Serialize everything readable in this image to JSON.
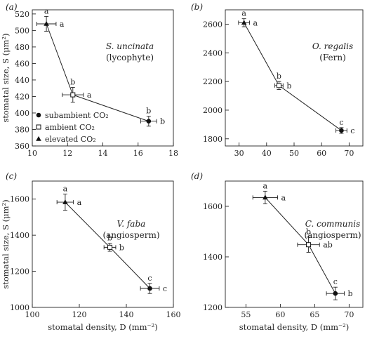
{
  "chart_data": [
    {
      "type": "line",
      "panel_label": "(a)",
      "species": "S. uncinata",
      "group": "(lycophyte)",
      "ylabel": "stomatal size, S (μm²)",
      "xlabel": "",
      "xlim": [
        10,
        18
      ],
      "ylim": [
        360,
        525
      ],
      "xticks": [
        10,
        12,
        14,
        16,
        18
      ],
      "yticks": [
        360,
        380,
        400,
        420,
        440,
        460,
        480,
        500,
        520
      ],
      "legend": {
        "position": "bottom-left",
        "entries": [
          "subambient CO₂",
          "ambient CO₂",
          "elevated CO₂"
        ]
      },
      "points": [
        {
          "condition": "elevated",
          "x": 10.8,
          "y": 508,
          "xerr": 0.55,
          "yerr": 9,
          "xlabel": "a",
          "ylabel": "a"
        },
        {
          "condition": "ambient",
          "x": 12.3,
          "y": 422,
          "xerr": 0.6,
          "yerr": 9,
          "xlabel": "a",
          "ylabel": "b"
        },
        {
          "condition": "subambient",
          "x": 16.6,
          "y": 390,
          "xerr": 0.45,
          "yerr": 6,
          "xlabel": "b",
          "ylabel": "b"
        }
      ]
    },
    {
      "type": "line",
      "panel_label": "(b)",
      "species": "O. regalis",
      "group": "(Fern)",
      "ylabel": "",
      "xlabel": "",
      "xlim": [
        25,
        75
      ],
      "ylim": [
        1750,
        2700
      ],
      "xticks": [
        30,
        40,
        50,
        60,
        70
      ],
      "yticks": [
        1800,
        2000,
        2200,
        2400,
        2600
      ],
      "points": [
        {
          "condition": "elevated",
          "x": 31.8,
          "y": 2610,
          "xerr": 2.0,
          "yerr": 28,
          "xlabel": "a",
          "ylabel": "a"
        },
        {
          "condition": "ambient",
          "x": 44.5,
          "y": 2172,
          "xerr": 1.5,
          "yerr": 28,
          "xlabel": "b",
          "ylabel": "b"
        },
        {
          "condition": "subambient",
          "x": 67.2,
          "y": 1858,
          "xerr": 2.0,
          "yerr": 20,
          "xlabel": "c",
          "ylabel": "c"
        }
      ]
    },
    {
      "type": "line",
      "panel_label": "(c)",
      "species": "V. faba",
      "group": "(angiosperm)",
      "ylabel": "stomatal size, S (μm²)",
      "xlabel": "stomatal density, D (mm⁻²)",
      "xlim": [
        100,
        160
      ],
      "ylim": [
        1000,
        1700
      ],
      "xticks": [
        100,
        120,
        140,
        160
      ],
      "yticks": [
        1000,
        1200,
        1400,
        1600
      ],
      "points": [
        {
          "condition": "elevated",
          "x": 114,
          "y": 1583,
          "xerr": 3.5,
          "yerr": 45,
          "xlabel": "a",
          "ylabel": "a"
        },
        {
          "condition": "ambient",
          "x": 133,
          "y": 1333,
          "xerr": 2.5,
          "yerr": 22,
          "xlabel": "b",
          "ylabel": "b"
        },
        {
          "condition": "subambient",
          "x": 150,
          "y": 1105,
          "xerr": 4.0,
          "yerr": 28,
          "xlabel": "c",
          "ylabel": "c"
        }
      ]
    },
    {
      "type": "line",
      "panel_label": "(d)",
      "species": "C. communis",
      "group": "(angiosperm)",
      "ylabel": "",
      "xlabel": "stomatal density, D (mm⁻²)",
      "xlim": [
        52,
        72
      ],
      "ylim": [
        1200,
        1700
      ],
      "xticks": [
        55,
        60,
        65,
        70
      ],
      "yticks": [
        1200,
        1400,
        1600
      ],
      "points": [
        {
          "condition": "elevated",
          "x": 57.8,
          "y": 1635,
          "xerr": 1.8,
          "yerr": 25,
          "xlabel": "a",
          "ylabel": "a"
        },
        {
          "condition": "ambient",
          "x": 64.1,
          "y": 1448,
          "xerr": 1.6,
          "yerr": 30,
          "xlabel": "ab",
          "ylabel": "b"
        },
        {
          "condition": "subambient",
          "x": 68.0,
          "y": 1255,
          "xerr": 1.3,
          "yerr": 25,
          "xlabel": "b",
          "ylabel": "c"
        }
      ]
    }
  ]
}
